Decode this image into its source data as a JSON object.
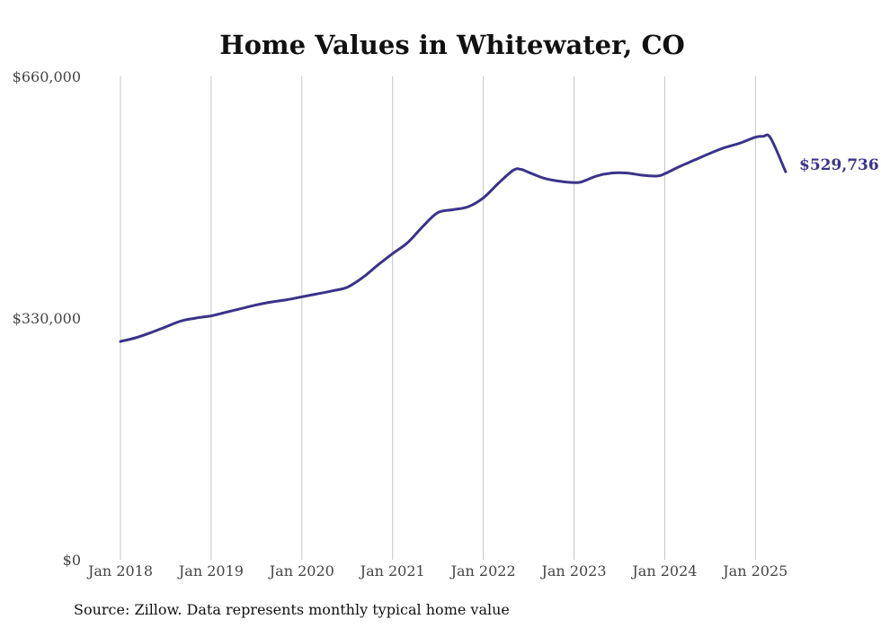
{
  "chart_data": {
    "type": "line",
    "title": "Home Values in Whitewater, CO",
    "source": "Source: Zillow. Data represents monthly typical home value",
    "y_ticks": [
      {
        "value": 0,
        "label": "$0"
      },
      {
        "value": 330000,
        "label": "$330,000"
      },
      {
        "value": 660000,
        "label": "$660,000"
      }
    ],
    "x_ticks": [
      {
        "value": "2018-01",
        "label": "Jan 2018"
      },
      {
        "value": "2019-01",
        "label": "Jan 2019"
      },
      {
        "value": "2020-01",
        "label": "Jan 2020"
      },
      {
        "value": "2021-01",
        "label": "Jan 2021"
      },
      {
        "value": "2022-01",
        "label": "Jan 2022"
      },
      {
        "value": "2023-01",
        "label": "Jan 2023"
      },
      {
        "value": "2024-01",
        "label": "Jan 2024"
      },
      {
        "value": "2025-01",
        "label": "Jan 2025"
      }
    ],
    "ylim": [
      0,
      660000
    ],
    "xlim": [
      "2018-01",
      "2025-05"
    ],
    "grid": "vertical",
    "line_color": "#3b3389",
    "end_label": "$529,736",
    "series": [
      {
        "x": [
          "2018-01",
          "2018-03",
          "2018-05",
          "2018-07",
          "2018-09",
          "2018-11",
          "2019-01",
          "2019-03",
          "2019-05",
          "2019-07",
          "2019-09",
          "2019-11",
          "2020-01",
          "2020-03",
          "2020-05",
          "2020-07",
          "2020-09",
          "2020-11",
          "2021-01",
          "2021-03",
          "2021-05",
          "2021-07",
          "2021-09",
          "2021-11",
          "2022-01",
          "2022-03",
          "2022-05",
          "2022-06",
          "2022-07",
          "2022-09",
          "2022-11",
          "2023-01",
          "2023-02",
          "2023-04",
          "2023-06",
          "2023-08",
          "2023-10",
          "2023-12",
          "2024-01",
          "2024-03",
          "2024-05",
          "2024-07",
          "2024-09",
          "2024-11",
          "2025-01",
          "2025-02",
          "2025-03",
          "2025-05"
        ],
        "values": [
          298000,
          303000,
          310000,
          318000,
          326000,
          330000,
          333000,
          338000,
          343000,
          348000,
          352000,
          355000,
          359000,
          363000,
          367000,
          372000,
          385000,
          402000,
          418000,
          433000,
          455000,
          474000,
          478000,
          482000,
          494000,
          514000,
          532000,
          533000,
          529000,
          521000,
          517000,
          515000,
          516000,
          524000,
          528000,
          528000,
          525000,
          524000,
          527000,
          537000,
          546000,
          555000,
          563000,
          569000,
          577000,
          578000,
          576000,
          529736
        ]
      }
    ]
  }
}
